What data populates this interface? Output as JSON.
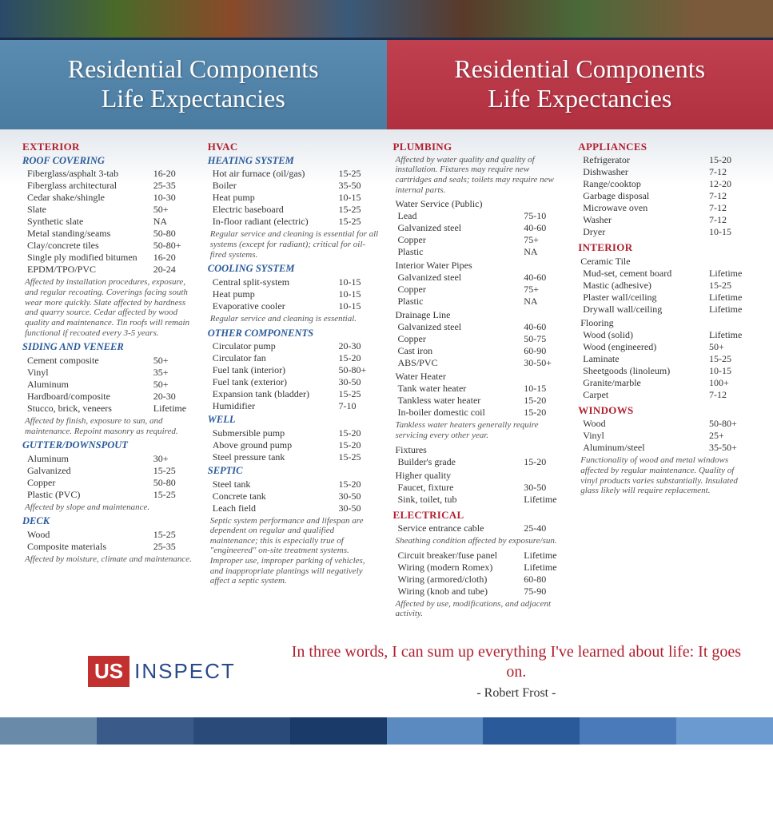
{
  "title_left": "Residential Components\nLife Expectancies",
  "title_right": "Residential Components\nLife Expectancies",
  "logo": {
    "badge": "US",
    "text": "INSPECT"
  },
  "quote": "In three words, I can sum up everything I've learned about life: It goes on.",
  "quote_attr": "- Robert Frost -",
  "stripe_colors": [
    "#6a8aaa",
    "#3a5a8a",
    "#2a4a7a",
    "#1a3a6a",
    "#5a8abf",
    "#2a5a9a",
    "#4a7aba",
    "#6a9acf"
  ],
  "col1": [
    {
      "t": "major",
      "v": "EXTERIOR"
    },
    {
      "t": "sub",
      "v": "ROOF COVERING"
    },
    {
      "t": "row",
      "l": "Fiberglass/asphalt 3-tab",
      "r": "16-20"
    },
    {
      "t": "row",
      "l": "Fiberglass architectural",
      "r": "25-35"
    },
    {
      "t": "row",
      "l": "Cedar shake/shingle",
      "r": "10-30"
    },
    {
      "t": "row",
      "l": "Slate",
      "r": "50+"
    },
    {
      "t": "row",
      "l": "Synthetic slate",
      "r": "NA"
    },
    {
      "t": "row",
      "l": "Metal standing/seams",
      "r": "50-80"
    },
    {
      "t": "row",
      "l": "Clay/concrete tiles",
      "r": "50-80+"
    },
    {
      "t": "row",
      "l": "Single ply modified bitumen",
      "r": "16-20"
    },
    {
      "t": "row",
      "l": "EPDM/TPO/PVC",
      "r": "20-24"
    },
    {
      "t": "note",
      "v": "Affected by installation procedures, exposure, and regular recoating. Coverings facing south wear more quickly. Slate affected by hardness and quarry source. Cedar affected by wood quality and maintenance. Tin roofs will remain functional if recoated every 3-5 years."
    },
    {
      "t": "sub",
      "v": "SIDING AND VENEER"
    },
    {
      "t": "row",
      "l": "Cement composite",
      "r": "50+"
    },
    {
      "t": "row",
      "l": "Vinyl",
      "r": "35+"
    },
    {
      "t": "row",
      "l": "Aluminum",
      "r": "50+"
    },
    {
      "t": "row",
      "l": "Hardboard/composite",
      "r": "20-30"
    },
    {
      "t": "row",
      "l": "Stucco, brick, veneers",
      "r": "Lifetime"
    },
    {
      "t": "note",
      "v": "Affected by finish, exposure to sun, and maintenance. Repoint masonry as required."
    },
    {
      "t": "sub",
      "v": "GUTTER/DOWNSPOUT"
    },
    {
      "t": "row",
      "l": "Aluminum",
      "r": "30+"
    },
    {
      "t": "row",
      "l": "Galvanized",
      "r": "15-25"
    },
    {
      "t": "row",
      "l": "Copper",
      "r": "50-80"
    },
    {
      "t": "row",
      "l": "Plastic (PVC)",
      "r": "15-25"
    },
    {
      "t": "note",
      "v": "Affected by slope and maintenance."
    },
    {
      "t": "sub",
      "v": "DECK"
    },
    {
      "t": "row",
      "l": "Wood",
      "r": "15-25"
    },
    {
      "t": "row",
      "l": "Composite materials",
      "r": "25-35"
    },
    {
      "t": "note",
      "v": "Affected by moisture, climate and maintenance."
    }
  ],
  "col2": [
    {
      "t": "major",
      "v": "HVAC"
    },
    {
      "t": "sub",
      "v": "HEATING SYSTEM"
    },
    {
      "t": "row",
      "l": "Hot air furnace (oil/gas)",
      "r": "15-25"
    },
    {
      "t": "row",
      "l": "Boiler",
      "r": "35-50"
    },
    {
      "t": "row",
      "l": "Heat pump",
      "r": "10-15"
    },
    {
      "t": "row",
      "l": "Electric baseboard",
      "r": "15-25"
    },
    {
      "t": "row",
      "l": "In-floor radiant (electric)",
      "r": "15-25"
    },
    {
      "t": "note",
      "v": "Regular service and cleaning is essential for all systems (except for radiant); critical for oil-fired systems."
    },
    {
      "t": "sub",
      "v": "COOLING SYSTEM"
    },
    {
      "t": "row",
      "l": "Central split-system",
      "r": "10-15"
    },
    {
      "t": "row",
      "l": "Heat pump",
      "r": "10-15"
    },
    {
      "t": "row",
      "l": "Evaporative cooler",
      "r": "10-15"
    },
    {
      "t": "note",
      "v": "Regular service and cleaning is essential."
    },
    {
      "t": "sub",
      "v": "OTHER COMPONENTS"
    },
    {
      "t": "row",
      "l": "Circulator pump",
      "r": "20-30"
    },
    {
      "t": "row",
      "l": "Circulator fan",
      "r": "15-20"
    },
    {
      "t": "row",
      "l": "Fuel tank (interior)",
      "r": "50-80+"
    },
    {
      "t": "row",
      "l": "Fuel tank (exterior)",
      "r": "30-50"
    },
    {
      "t": "row",
      "l": "Expansion tank (bladder)",
      "r": "15-25"
    },
    {
      "t": "row",
      "l": "Humidifier",
      "r": "7-10"
    },
    {
      "t": "sub",
      "v": "WELL"
    },
    {
      "t": "row",
      "l": "Submersible pump",
      "r": "15-20"
    },
    {
      "t": "row",
      "l": "Above ground pump",
      "r": "15-20"
    },
    {
      "t": "row",
      "l": "Steel pressure tank",
      "r": "15-25"
    },
    {
      "t": "sub",
      "v": "SEPTIC"
    },
    {
      "t": "row",
      "l": "Steel tank",
      "r": "15-20"
    },
    {
      "t": "row",
      "l": "Concrete tank",
      "r": "30-50"
    },
    {
      "t": "row",
      "l": "Leach field",
      "r": "30-50"
    },
    {
      "t": "note",
      "v": "Septic system performance and lifespan are dependent on regular and qualified maintenance; this is especially true of \"engineered\" on-site treatment systems. Improper use, improper parking of vehicles, and inappropriate plantings will negatively affect a septic system."
    }
  ],
  "col3": [
    {
      "t": "major",
      "v": "PLUMBING"
    },
    {
      "t": "note",
      "v": "Affected by water quality and quality of installation. Fixtures may require new cartridges and seals; toilets may require new internal parts."
    },
    {
      "t": "grp",
      "v": "Water Service (Public)"
    },
    {
      "t": "row",
      "l": "Lead",
      "r": "75-10"
    },
    {
      "t": "row",
      "l": "Galvanized steel",
      "r": "40-60"
    },
    {
      "t": "row",
      "l": "Copper",
      "r": "75+"
    },
    {
      "t": "row",
      "l": "Plastic",
      "r": "NA"
    },
    {
      "t": "grp",
      "v": "Interior Water Pipes"
    },
    {
      "t": "row",
      "l": "Galvanized steel",
      "r": "40-60"
    },
    {
      "t": "row",
      "l": "Copper",
      "r": "75+"
    },
    {
      "t": "row",
      "l": "Plastic",
      "r": "NA"
    },
    {
      "t": "grp",
      "v": "Drainage Line"
    },
    {
      "t": "row",
      "l": "Galvanized steel",
      "r": "40-60"
    },
    {
      "t": "row",
      "l": "Copper",
      "r": "50-75"
    },
    {
      "t": "row",
      "l": "Cast iron",
      "r": "60-90"
    },
    {
      "t": "row",
      "l": "ABS/PVC",
      "r": "30-50+"
    },
    {
      "t": "grp",
      "v": "Water Heater"
    },
    {
      "t": "row",
      "l": "Tank water heater",
      "r": "10-15"
    },
    {
      "t": "row",
      "l": "Tankless water heater",
      "r": "15-20"
    },
    {
      "t": "row",
      "l": "In-boiler domestic coil",
      "r": "15-20"
    },
    {
      "t": "note",
      "v": "Tankless water heaters generally require servicing every other year."
    },
    {
      "t": "grp",
      "v": "Fixtures"
    },
    {
      "t": "row",
      "l": "Builder's grade",
      "r": "15-20"
    },
    {
      "t": "grp",
      "v": "Higher quality"
    },
    {
      "t": "row",
      "l": "Faucet, fixture",
      "r": "30-50"
    },
    {
      "t": "row",
      "l": "Sink, toilet, tub",
      "r": "Lifetime"
    },
    {
      "t": "major",
      "v": "ELECTRICAL"
    },
    {
      "t": "row",
      "l": "Service entrance cable",
      "r": "25-40"
    },
    {
      "t": "note",
      "v": "Sheathing condition affected by exposure/sun."
    },
    {
      "t": "row",
      "l": "Circuit breaker/fuse panel",
      "r": "Lifetime"
    },
    {
      "t": "row",
      "l": "Wiring (modern Romex)",
      "r": "Lifetime"
    },
    {
      "t": "row",
      "l": "Wiring (armored/cloth)",
      "r": "60-80"
    },
    {
      "t": "row",
      "l": "Wiring (knob and tube)",
      "r": "75-90"
    },
    {
      "t": "note",
      "v": "Affected by use, modifications, and adjacent activity."
    }
  ],
  "col4": [
    {
      "t": "major",
      "v": "APPLIANCES"
    },
    {
      "t": "row",
      "l": "Refrigerator",
      "r": "15-20"
    },
    {
      "t": "row",
      "l": "Dishwasher",
      "r": "7-12"
    },
    {
      "t": "row",
      "l": "Range/cooktop",
      "r": "12-20"
    },
    {
      "t": "row",
      "l": "Garbage disposal",
      "r": "7-12"
    },
    {
      "t": "row",
      "l": "Microwave oven",
      "r": "7-12"
    },
    {
      "t": "row",
      "l": "Washer",
      "r": "7-12"
    },
    {
      "t": "row",
      "l": "Dryer",
      "r": "10-15"
    },
    {
      "t": "major",
      "v": "INTERIOR"
    },
    {
      "t": "grp",
      "v": "Ceramic Tile"
    },
    {
      "t": "row",
      "l": "Mud-set, cement board",
      "r": "Lifetime"
    },
    {
      "t": "row",
      "l": "Mastic (adhesive)",
      "r": "15-25"
    },
    {
      "t": "row",
      "l": "Plaster wall/ceiling",
      "r": "Lifetime"
    },
    {
      "t": "row",
      "l": "Drywall wall/ceiling",
      "r": "Lifetime"
    },
    {
      "t": "grp",
      "v": "Flooring"
    },
    {
      "t": "row",
      "l": "Wood (solid)",
      "r": "Lifetime"
    },
    {
      "t": "row",
      "l": "Wood (engineered)",
      "r": "50+"
    },
    {
      "t": "row",
      "l": "Laminate",
      "r": "15-25"
    },
    {
      "t": "row",
      "l": "Sheetgoods (linoleum)",
      "r": "10-15"
    },
    {
      "t": "row",
      "l": "Granite/marble",
      "r": "100+"
    },
    {
      "t": "row",
      "l": "Carpet",
      "r": "7-12"
    },
    {
      "t": "major",
      "v": "WINDOWS"
    },
    {
      "t": "row",
      "l": "Wood",
      "r": "50-80+"
    },
    {
      "t": "row",
      "l": "Vinyl",
      "r": "25+"
    },
    {
      "t": "row",
      "l": "Aluminum/steel",
      "r": "35-50+"
    },
    {
      "t": "note",
      "v": "Functionality of wood and metal windows affected by regular maintenance. Quality of vinyl products varies substantially. Insulated glass likely will require replacement."
    }
  ]
}
